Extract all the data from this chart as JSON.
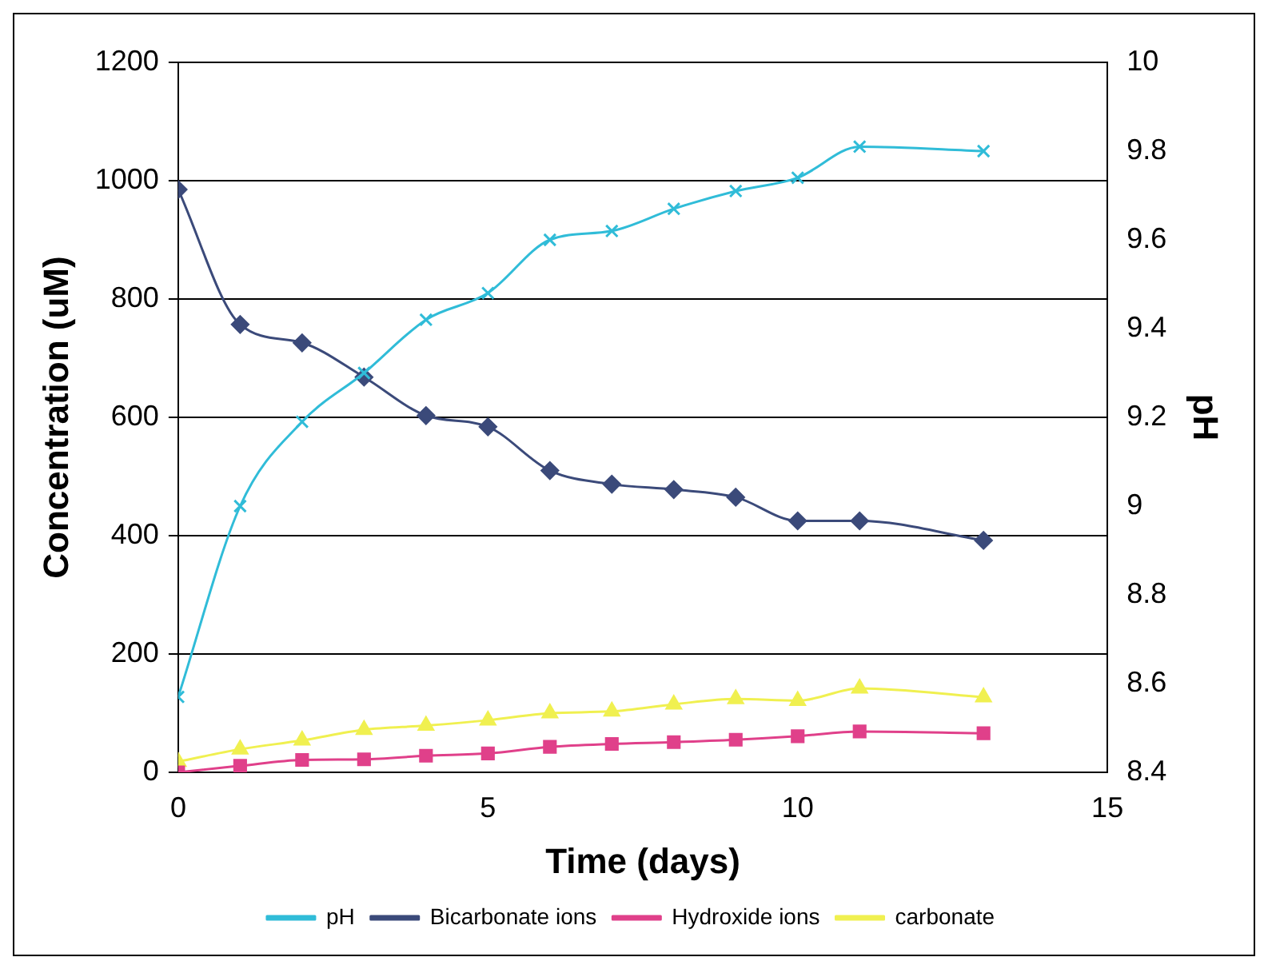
{
  "chart_data": {
    "type": "line",
    "xlabel": "Time (days)",
    "ylabel": "Concentration (uM)",
    "y2label": "pH",
    "x": [
      0,
      1,
      2,
      3,
      4,
      5,
      6,
      7,
      8,
      9,
      10,
      11,
      13
    ],
    "xlim": [
      0,
      15
    ],
    "xticks": [
      0,
      5,
      10,
      15
    ],
    "ylim": [
      0,
      1200
    ],
    "yticks": [
      0,
      200,
      400,
      600,
      800,
      1000,
      1200
    ],
    "y2lim": [
      8.4,
      10
    ],
    "y2ticks": [
      8.4,
      8.6,
      8.8,
      9,
      9.2,
      9.4,
      9.6,
      9.8,
      10
    ],
    "grid": "y",
    "legend": "bottom",
    "series": [
      {
        "name": "Bicarbonate ions",
        "color": "#3b4a7a",
        "marker": "diamond",
        "values": [
          985,
          757,
          726,
          668,
          603,
          584,
          510,
          487,
          478,
          465,
          425,
          425,
          392
        ]
      },
      {
        "name": "Hydroxide ions",
        "color": "#e0408a",
        "marker": "square",
        "values": [
          0,
          11,
          21,
          22,
          28,
          32,
          43,
          48,
          51,
          55,
          61,
          69,
          66
        ]
      },
      {
        "name": "carbonate",
        "color": "#f0f050",
        "marker": "triangle",
        "values": [
          18,
          39,
          54,
          72,
          79,
          88,
          100,
          103,
          115,
          124,
          121,
          142,
          127
        ]
      },
      {
        "name": "pH",
        "color": "#30bcd8",
        "marker": "cross",
        "axis": "y2",
        "values": [
          8.57,
          9.0,
          9.19,
          9.3,
          9.42,
          9.48,
          9.6,
          9.62,
          9.67,
          9.71,
          9.74,
          9.81,
          9.8
        ]
      }
    ]
  }
}
